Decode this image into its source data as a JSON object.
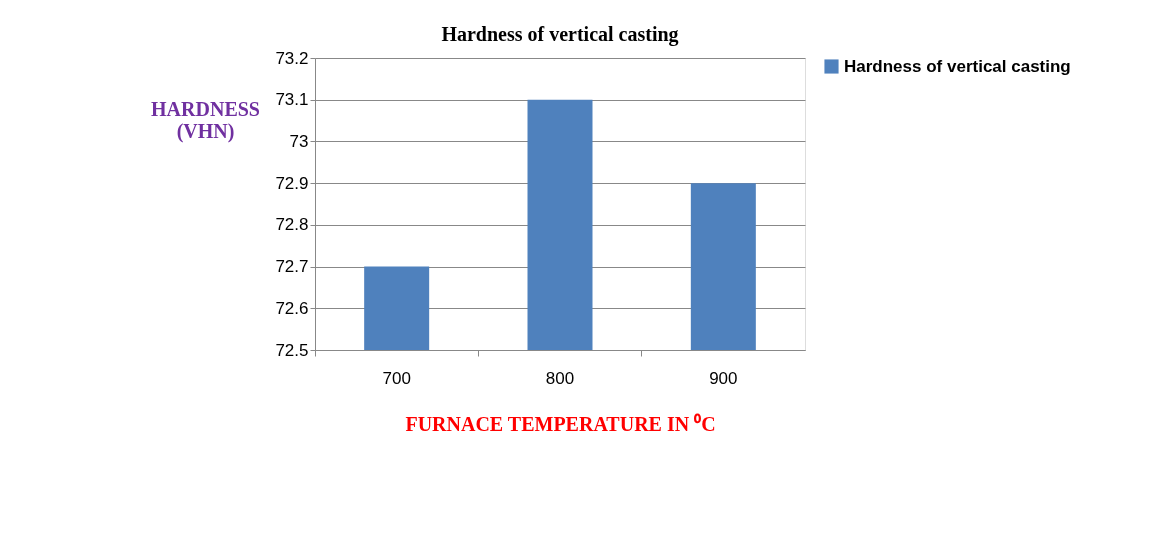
{
  "chart_data": {
    "type": "bar",
    "title": "Hardness of vertical casting",
    "xlabel": "FURNACE TEMPERATURE IN ⁰C",
    "ylabel": "HARDNESS (VHN)",
    "categories": [
      "700",
      "800",
      "900"
    ],
    "series": [
      {
        "name": "Hardness of vertical casting",
        "color": "#4f81bd",
        "values": [
          72.7,
          73.1,
          72.9
        ]
      }
    ],
    "ylim": [
      72.5,
      73.2
    ],
    "yticks": [
      72.5,
      72.6,
      72.7,
      72.8,
      72.9,
      73,
      73.1,
      73.2
    ],
    "grid": "y",
    "legend": "right"
  }
}
